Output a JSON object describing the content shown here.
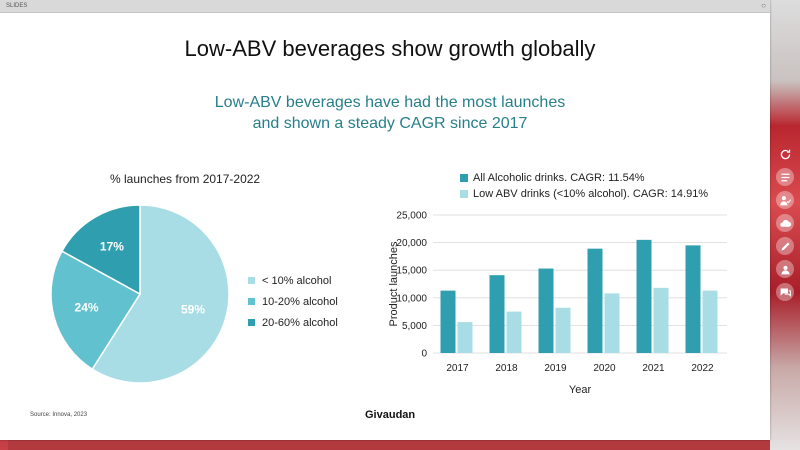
{
  "window": {
    "app_name": "SLIDES"
  },
  "slide": {
    "title": "Low-ABV beverages show growth globally",
    "subtitle_line1": "Low-ABV beverages have had the most launches",
    "subtitle_line2": "and shown a steady CAGR since 2017",
    "source": "Source: Innova, 2023",
    "brand": "Givaudan"
  },
  "colors": {
    "light": "#a8dde6",
    "mid": "#62c1cf",
    "dark": "#2f9fb0",
    "subtitle": "#277f8a"
  },
  "chart_data": [
    {
      "type": "pie",
      "title": "% launches from 2017-2022",
      "slices": [
        {
          "label": "< 10% alcohol",
          "value": 59,
          "display": "59%"
        },
        {
          "label": "10-20% alcohol",
          "value": 24,
          "display": "24%"
        },
        {
          "label": "20-60% alcohol",
          "value": 17,
          "display": "17%"
        }
      ],
      "legend_position": "right"
    },
    {
      "type": "bar",
      "categories": [
        "2017",
        "2018",
        "2019",
        "2020",
        "2021",
        "2022"
      ],
      "series": [
        {
          "name": "All Alcoholic drinks. CAGR: 11.54%",
          "values": [
            11300,
            14100,
            15300,
            18900,
            20500,
            19500
          ]
        },
        {
          "name": "Low ABV drinks (<10% alcohol). CAGR: 14.91%",
          "values": [
            5600,
            7500,
            8200,
            10800,
            11800,
            11300
          ]
        }
      ],
      "xlabel": "Year",
      "ylabel": "Product launches",
      "ylim": [
        0,
        25000
      ],
      "yticks": [
        "0",
        "5,000",
        "10,000",
        "15,000",
        "20,000",
        "25,000"
      ],
      "grid": true,
      "legend_position": "top"
    }
  ]
}
